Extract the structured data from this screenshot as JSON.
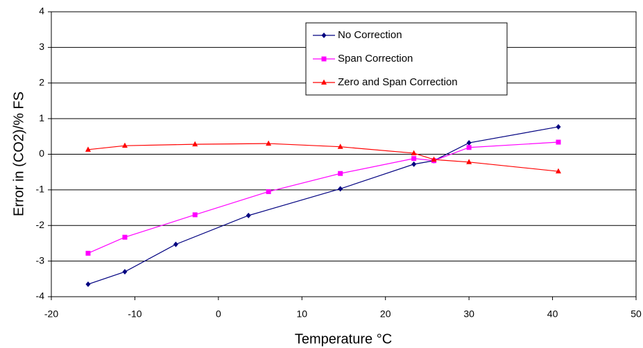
{
  "chart_data": {
    "type": "line",
    "x_label": "Temperature °C",
    "y_label": "Error in (CO2)/% FS",
    "xlim": [
      -20,
      50
    ],
    "xticks": [
      -20,
      -10,
      0,
      10,
      20,
      30,
      40,
      50
    ],
    "ylim": [
      -4,
      4
    ],
    "yticks": [
      -4,
      -3,
      -2,
      -1,
      0,
      1,
      2,
      3,
      4
    ],
    "grid": true,
    "legend": "upper right",
    "series": [
      {
        "name": "No Correction",
        "color": "#000080",
        "marker": "diamond",
        "x": [
          -15.6,
          -11.2,
          -5.1,
          3.6,
          14.6,
          23.4,
          25.8,
          30,
          40.7
        ],
        "values": [
          -3.65,
          -3.3,
          -2.53,
          -1.72,
          -0.97,
          -0.28,
          -0.18,
          0.32,
          0.77
        ]
      },
      {
        "name": "Span Correction",
        "color": "#ff00ff",
        "marker": "square",
        "x": [
          -15.6,
          -11.2,
          -2.8,
          6.0,
          14.6,
          23.4,
          25.8,
          30,
          40.7
        ],
        "values": [
          -2.78,
          -2.33,
          -1.7,
          -1.05,
          -0.54,
          -0.12,
          -0.18,
          0.19,
          0.34
        ]
      },
      {
        "name": "Zero and Span Correction",
        "color": "#ff0000",
        "marker": "triangle",
        "x": [
          -15.6,
          -11.2,
          -2.8,
          6.0,
          14.6,
          23.4,
          25.8,
          30,
          40.7
        ],
        "values": [
          0.13,
          0.24,
          0.28,
          0.3,
          0.21,
          0.03,
          -0.15,
          -0.22,
          -0.48
        ]
      }
    ]
  }
}
